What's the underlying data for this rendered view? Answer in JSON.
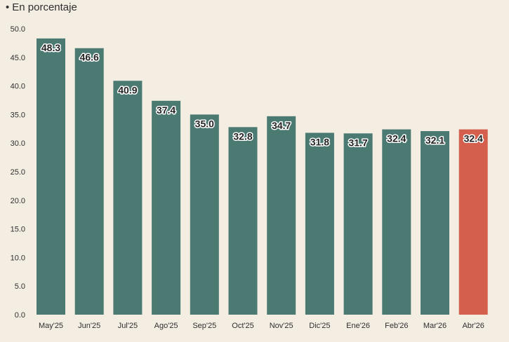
{
  "subtitle": {
    "bullet": "•",
    "text": "En porcentaje"
  },
  "colors": {
    "background": "#f3ede2",
    "bar": "#4a7a72",
    "highlight": "#d45f4c",
    "axis": "#2f2f2f"
  },
  "chart_data": {
    "type": "bar",
    "title": "",
    "subtitle": "En porcentaje",
    "xlabel": "",
    "ylabel": "",
    "categories": [
      "May'25",
      "Jun'25",
      "Jul'25",
      "Ago'25",
      "Sep'25",
      "Oct'25",
      "Nov'25",
      "Dic'25",
      "Ene'26",
      "Feb'26",
      "Mar'26",
      "Abr'26"
    ],
    "values": [
      48.3,
      46.6,
      40.9,
      37.4,
      35.0,
      32.8,
      34.7,
      31.8,
      31.7,
      32.4,
      32.1,
      32.4
    ],
    "value_labels": [
      "48.3",
      "46.6",
      "40.9",
      "37.4",
      "35.0",
      "32.8",
      "34.7",
      "31.8",
      "31.7",
      "32.4",
      "32.1",
      "32.4"
    ],
    "highlight_index": 11,
    "ylim": [
      0,
      50
    ],
    "yticks": [
      0,
      5,
      10,
      15,
      20,
      25,
      30,
      35,
      40,
      45,
      50
    ],
    "ytick_labels": [
      "0.0",
      "5.0",
      "10.0",
      "15.0",
      "20.0",
      "25.0",
      "30.0",
      "35.0",
      "40.0",
      "45.0",
      "50.0"
    ],
    "grid": false,
    "legend": "none"
  }
}
